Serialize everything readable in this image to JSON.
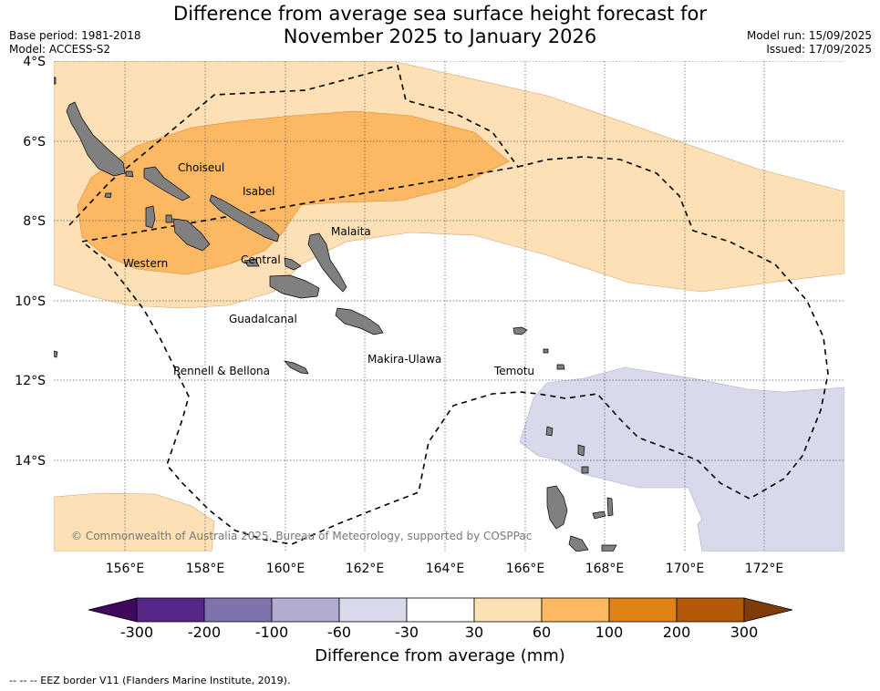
{
  "title_line1": "Difference from average sea surface height forecast for",
  "title_line2": "November 2025 to January 2026",
  "base_period": "Base period: 1981-2018",
  "model": "Model: ACCESS-S2",
  "model_run": "Model run: 15/09/2025",
  "issued": "Issued: 17/09/2025",
  "copyright": "© Commonwealth of Australia 2025, Bureau of Meteorology, supported by COSPPac",
  "lat_labels": [
    "4°S",
    "6°S",
    "8°S",
    "10°S",
    "12°S",
    "14°S"
  ],
  "lon_labels": [
    "156°E",
    "158°E",
    "160°E",
    "162°E",
    "164°E",
    "166°E",
    "168°E",
    "170°E",
    "172°E"
  ],
  "provinces": [
    "Choiseul",
    "Isabel",
    "Malaita",
    "Western",
    "Central",
    "Guadalcanal",
    "Makira-Ulawa",
    "Rennell & Bellona",
    "Temotu"
  ],
  "colorbar": {
    "title": "Difference from average (mm)",
    "ticks": [
      "-300",
      "-200",
      "-100",
      "-60",
      "-30",
      "30",
      "60",
      "100",
      "200",
      "300"
    ],
    "colors": [
      "#3f0a5e",
      "#542788",
      "#8073ac",
      "#b2abd2",
      "#d8daeb",
      "#ffffff",
      "#fee0b6",
      "#fdb863",
      "#e08214",
      "#b35806",
      "#7f3b08"
    ]
  },
  "footnote": "--  --  -- EEZ border V11 (Flanders Marine Institute, 2019)."
}
